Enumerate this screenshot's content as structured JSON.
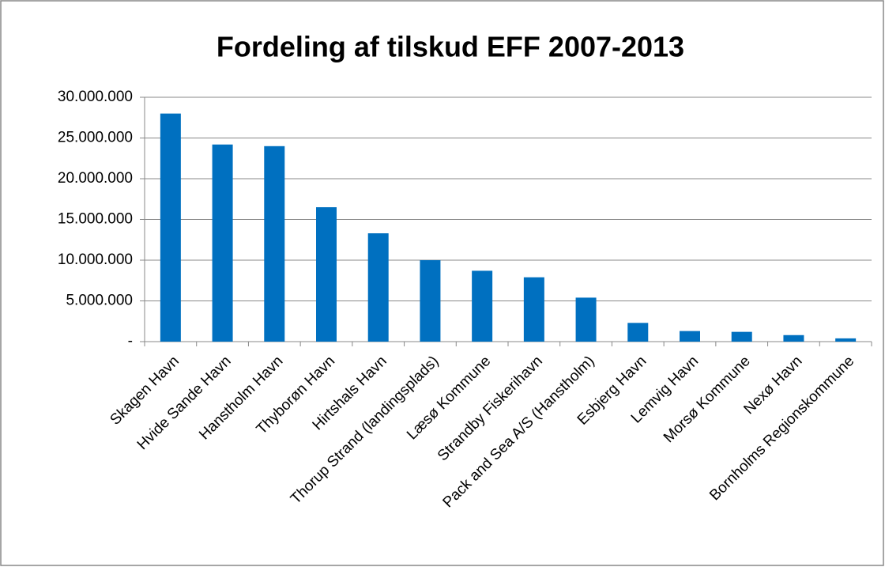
{
  "chart_data": {
    "type": "bar",
    "title": "Fordeling af tilskud EFF 2007-2013",
    "categories": [
      "Skagen Havn",
      "Hvide Sande Havn",
      "Hanstholm Havn",
      "Thyborøn Havn",
      "Hirtshals Havn",
      "Thorup Strand (landingsplads)",
      "Læsø Kommune",
      "Strandby Fiskerihavn",
      "Pack and Sea A/S (Hanstholm)",
      "Esbjerg Havn",
      "Lemvig Havn",
      "Morsø Kommune",
      "Nexø Havn",
      "Bornholms Regionskommune"
    ],
    "values": [
      28000000,
      24200000,
      24000000,
      16500000,
      13300000,
      10000000,
      8700000,
      7900000,
      5400000,
      2300000,
      1300000,
      1200000,
      800000,
      400000
    ],
    "color": "#0070c0",
    "ylim": [
      0,
      30000000
    ],
    "yticks": [
      {
        "value": 0,
        "label": "-"
      },
      {
        "value": 5000000,
        "label": "5.000.000"
      },
      {
        "value": 10000000,
        "label": "10.000.000"
      },
      {
        "value": 15000000,
        "label": "15.000.000"
      },
      {
        "value": 20000000,
        "label": "20.000.000"
      },
      {
        "value": 25000000,
        "label": "25.000.000"
      },
      {
        "value": 30000000,
        "label": "30.000.000"
      }
    ],
    "grid": true
  }
}
